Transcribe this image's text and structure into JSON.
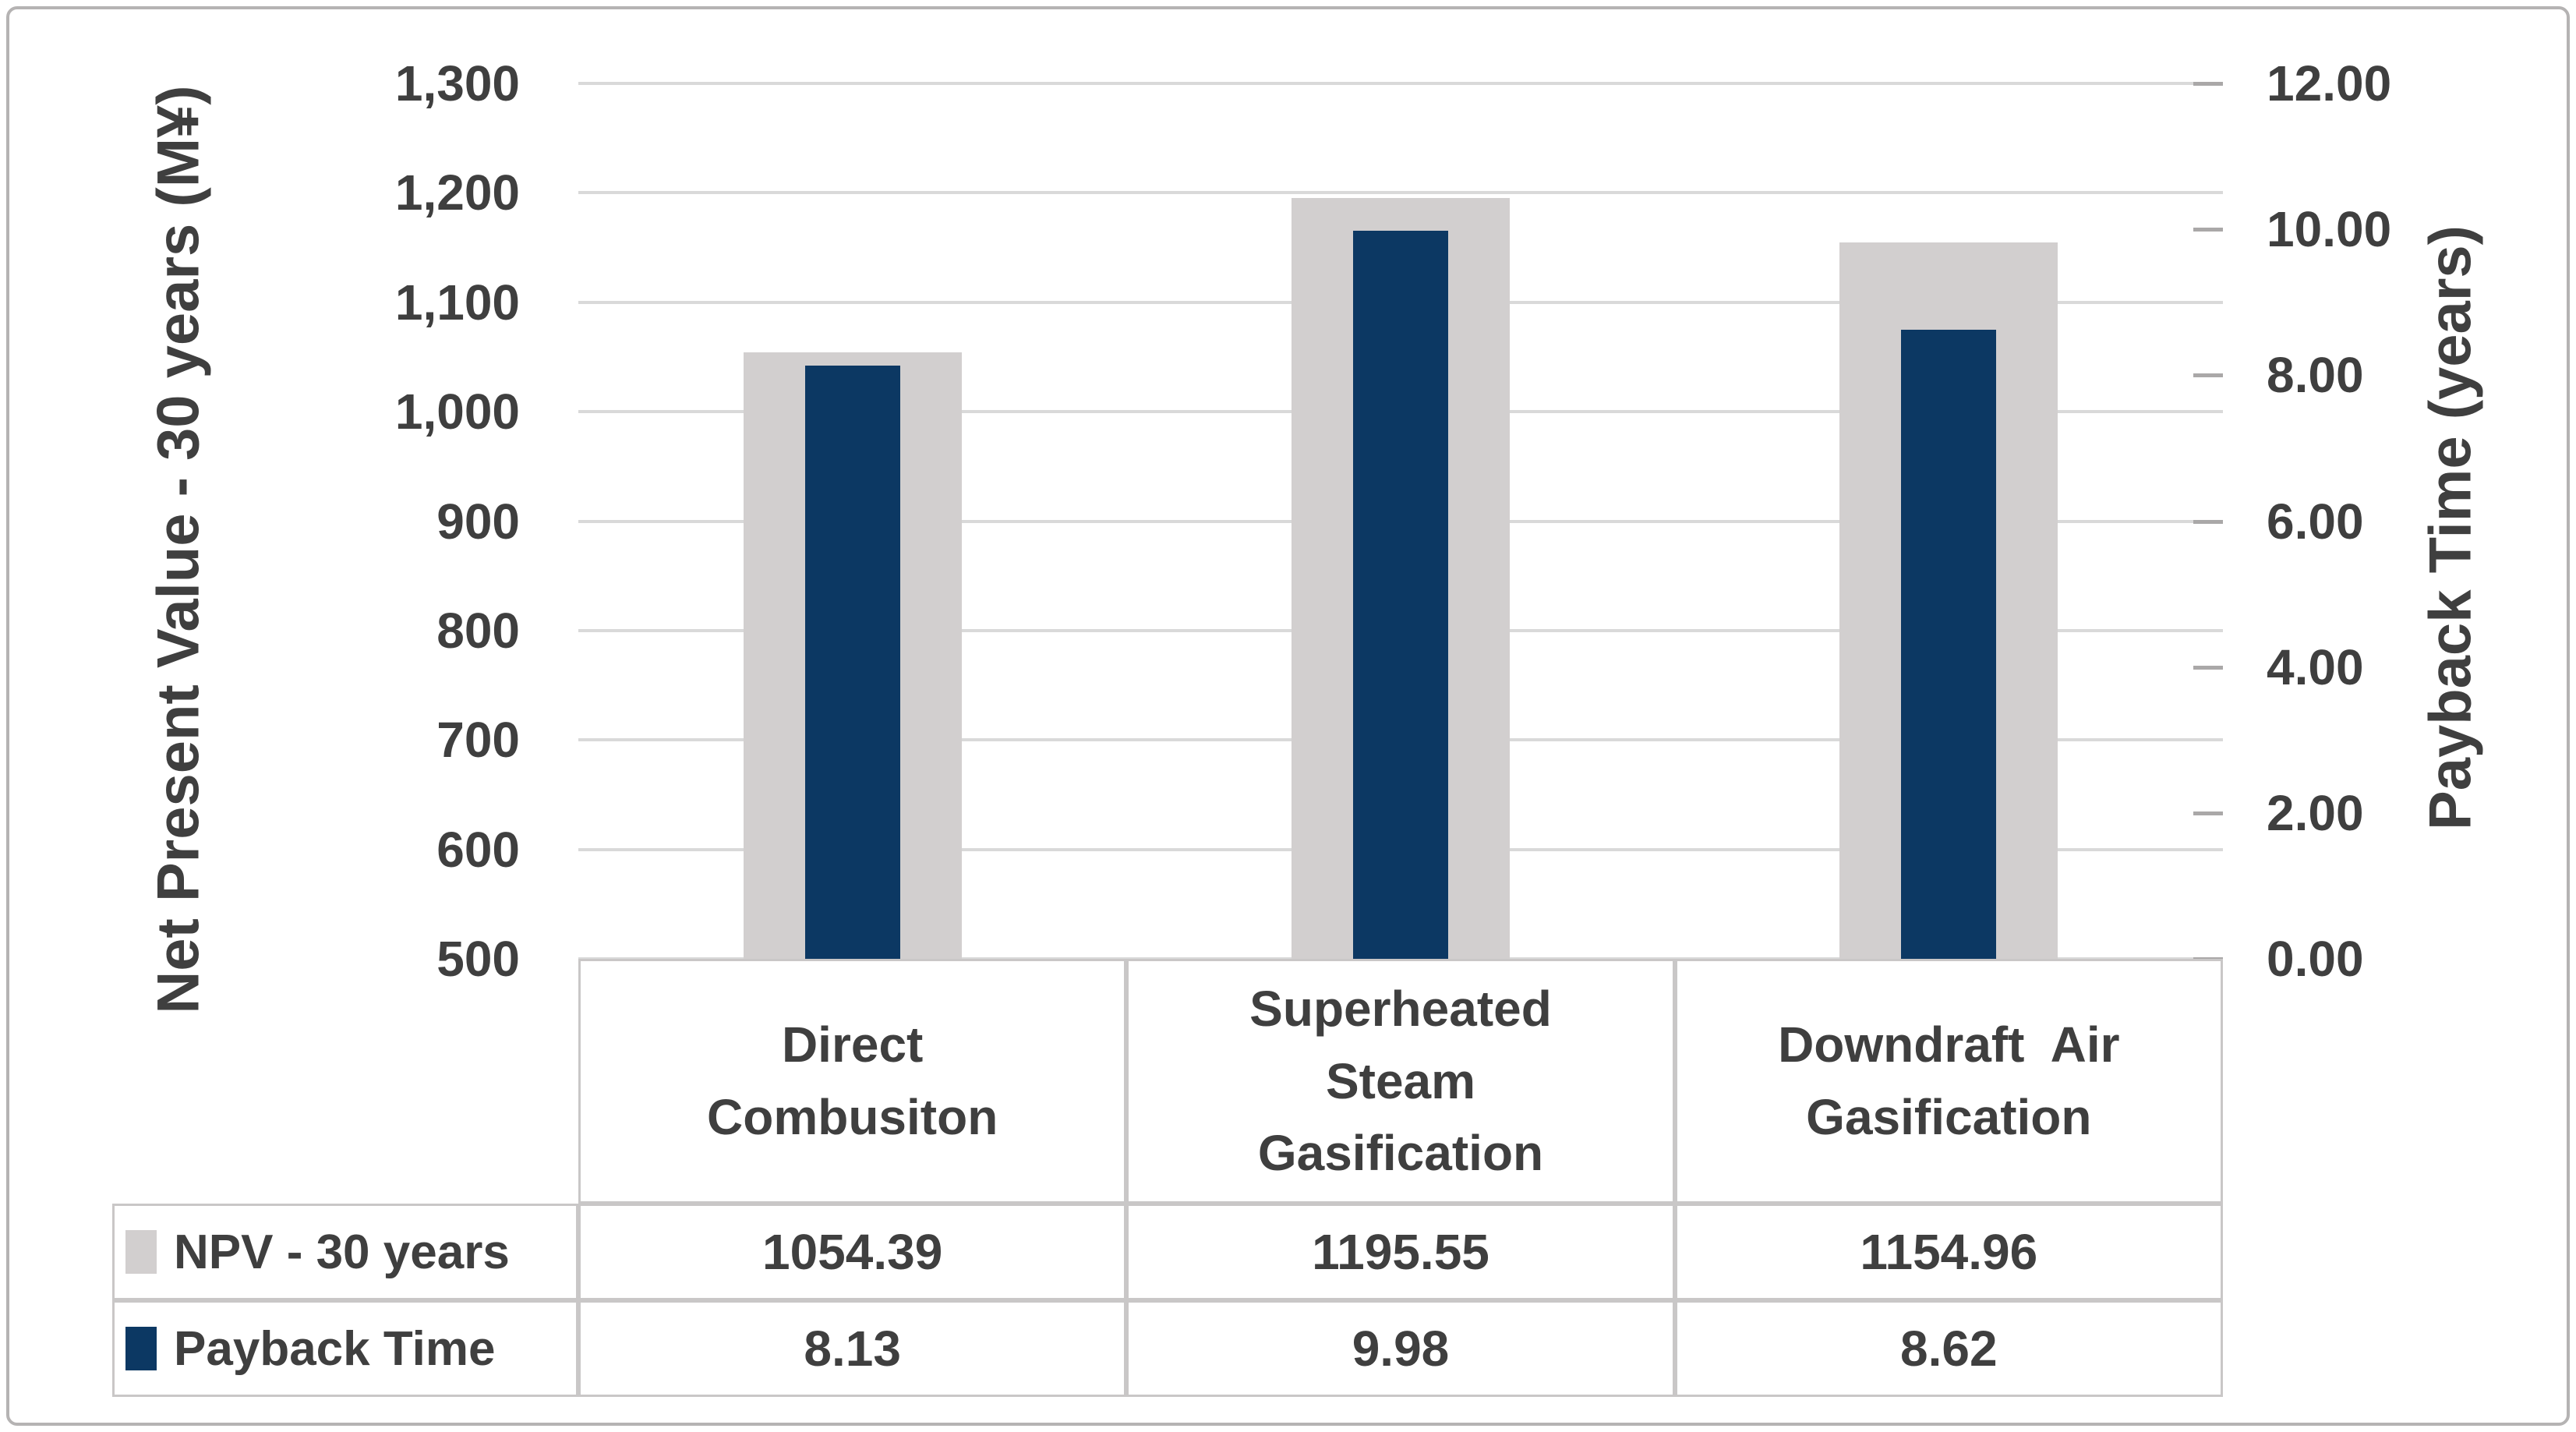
{
  "chart_data": {
    "type": "bar",
    "subtype": "dual-axis-overlapped-columns",
    "categories": [
      "Direct Combusiton",
      "Superheated Steam Gasification",
      "Downdraft  Air Gasification"
    ],
    "category_lines": [
      [
        "Direct",
        "Combusiton"
      ],
      [
        "Superheated",
        "Steam",
        "Gasification"
      ],
      [
        "Downdraft  Air",
        "Gasification"
      ]
    ],
    "series": [
      {
        "name": "NPV - 30 years",
        "axis": "left",
        "color": "#d2cfcf",
        "values": [
          1054.39,
          1195.55,
          1154.96
        ],
        "values_display": [
          "1054.39",
          "1195.55",
          "1154.96"
        ]
      },
      {
        "name": "Payback Time",
        "axis": "right",
        "color": "#0c3863",
        "values": [
          8.13,
          9.98,
          8.62
        ],
        "values_display": [
          "8.13",
          "9.98",
          "8.62"
        ]
      }
    ],
    "left_axis": {
      "title": "Net Present Value - 30 years (M¥)",
      "min": 500,
      "max": 1300,
      "step": 100,
      "tick_labels": [
        "1,300",
        "1,200",
        "1,100",
        "1,000",
        "900",
        "800",
        "700",
        "600",
        "500"
      ]
    },
    "right_axis": {
      "title": "Payback Time (years)",
      "min": 0,
      "max": 12,
      "step": 2,
      "tick_labels": [
        "12.00",
        "10.00",
        "8.00",
        "6.00",
        "4.00",
        "2.00",
        "0.00"
      ]
    },
    "grid": true,
    "legend_position": "data-table-left",
    "colors": {
      "grid_line": "#d9d9d9",
      "table_border": "#c9c7c7",
      "text": "#3f3f3f",
      "frame_border": "#b5b3b3"
    }
  }
}
